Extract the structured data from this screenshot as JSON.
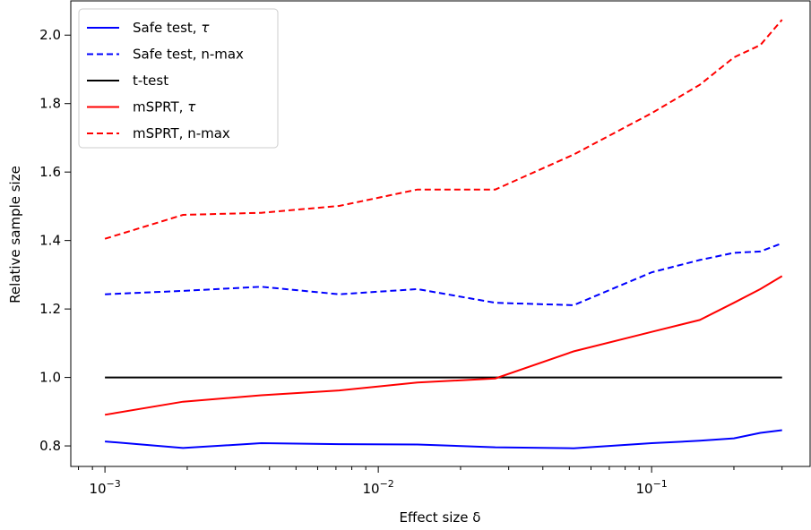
{
  "chart_data": {
    "type": "line",
    "xlabel": "Effect size δ",
    "ylabel": "Relative sample size",
    "xscale": "log",
    "xlim": [
      0.00075,
      0.38
    ],
    "ylim": [
      0.74,
      2.1
    ],
    "x_ticks": [
      {
        "value": 0.001,
        "base": "10",
        "exp": "−3"
      },
      {
        "value": 0.01,
        "base": "10",
        "exp": "−2"
      },
      {
        "value": 0.1,
        "base": "10",
        "exp": "−1"
      }
    ],
    "y_ticks": [
      0.8,
      1.0,
      1.2,
      1.4,
      1.6,
      1.8,
      2.0
    ],
    "y_tick_labels": [
      "0.8",
      "1.0",
      "1.2",
      "1.4",
      "1.6",
      "1.8",
      "2.0"
    ],
    "grid": false,
    "legend": "top-left",
    "x": [
      0.001,
      0.00193,
      0.00373,
      0.0072,
      0.0139,
      0.0268,
      0.0518,
      0.1,
      0.15,
      0.2,
      0.25,
      0.3
    ],
    "series": [
      {
        "name": "Safe test, ",
        "name_symbol": "τ",
        "color": "#0000ff",
        "dash": "solid",
        "values": [
          0.813,
          0.794,
          0.808,
          0.805,
          0.804,
          0.796,
          0.793,
          0.808,
          0.815,
          0.822,
          0.838,
          0.846
        ]
      },
      {
        "name": "Safe test, n-max",
        "name_symbol": "",
        "color": "#0000ff",
        "dash": "dashed",
        "values": [
          1.243,
          1.253,
          1.265,
          1.243,
          1.258,
          1.218,
          1.211,
          1.307,
          1.343,
          1.364,
          1.368,
          1.392
        ]
      },
      {
        "name": "t-test",
        "name_symbol": "",
        "color": "#000000",
        "dash": "solid",
        "values": [
          1.0,
          1.0,
          1.0,
          1.0,
          1.0,
          1.0,
          1.0,
          1.0,
          1.0,
          1.0,
          1.0,
          1.0
        ]
      },
      {
        "name": "mSPRT, ",
        "name_symbol": "τ",
        "color": "#ff0000",
        "dash": "solid",
        "values": [
          0.891,
          0.929,
          0.948,
          0.962,
          0.985,
          0.997,
          1.076,
          1.133,
          1.168,
          1.218,
          1.258,
          1.296
        ]
      },
      {
        "name": "mSPRT, n-max",
        "name_symbol": "",
        "color": "#ff0000",
        "dash": "dashed",
        "values": [
          1.405,
          1.475,
          1.481,
          1.501,
          1.549,
          1.549,
          1.651,
          1.772,
          1.855,
          1.935,
          1.971,
          2.045
        ]
      }
    ]
  }
}
